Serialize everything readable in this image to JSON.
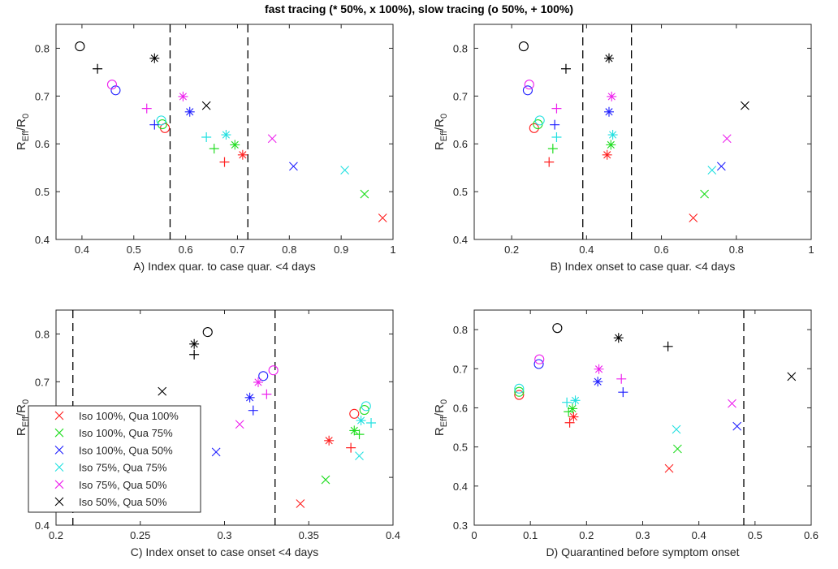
{
  "figure": {
    "title": "fast tracing (* 50%, x 100%), slow tracing (o 50%, + 100%)"
  },
  "colors": {
    "iso100_qua100": "#ff2020",
    "iso100_qua75": "#22dd22",
    "iso100_qua50": "#2020ff",
    "iso75_qua75": "#22e0e0",
    "iso75_qua50": "#ee22ee",
    "iso50_qua50": "#000000"
  },
  "chart_data": [
    {
      "type": "scatter",
      "xlabel": "A) Index quar. to case quar. <4 days",
      "ylabel": "R_Eff/R_0",
      "xlim": [
        0.35,
        1.0
      ],
      "ylim": [
        0.4,
        0.85
      ],
      "xticks": [
        0.4,
        0.5,
        0.6,
        0.7,
        0.8,
        0.9,
        1.0
      ],
      "xticklabels": [
        "0.4",
        "0.5",
        "0.6",
        "0.7",
        "0.8",
        "0.9",
        "1"
      ],
      "yticks": [
        0.4,
        0.5,
        0.6,
        0.7,
        0.8
      ],
      "yticklabels": [
        "0.4",
        "0.5",
        "0.6",
        "0.7",
        "0.8"
      ],
      "vlines": [
        0.57,
        0.72
      ],
      "series": [
        {
          "name": "Iso 100%, Qua 100%",
          "color": "iso100_qua100",
          "points": [
            {
              "marker": "o",
              "x": 0.56,
              "y": 0.633
            },
            {
              "marker": "+",
              "x": 0.675,
              "y": 0.562
            },
            {
              "marker": "*",
              "x": 0.71,
              "y": 0.577
            },
            {
              "marker": "x",
              "x": 0.98,
              "y": 0.445
            }
          ]
        },
        {
          "name": "Iso 100%, Qua 75%",
          "color": "iso100_qua75",
          "points": [
            {
              "marker": "o",
              "x": 0.555,
              "y": 0.641
            },
            {
              "marker": "+",
              "x": 0.655,
              "y": 0.59
            },
            {
              "marker": "*",
              "x": 0.695,
              "y": 0.598
            },
            {
              "marker": "x",
              "x": 0.945,
              "y": 0.495
            }
          ]
        },
        {
          "name": "Iso 100%, Qua 50%",
          "color": "iso100_qua50",
          "points": [
            {
              "marker": "o",
              "x": 0.465,
              "y": 0.712
            },
            {
              "marker": "+",
              "x": 0.54,
              "y": 0.64
            },
            {
              "marker": "*",
              "x": 0.608,
              "y": 0.667
            },
            {
              "marker": "x",
              "x": 0.808,
              "y": 0.553
            }
          ]
        },
        {
          "name": "Iso 75%, Qua 75%",
          "color": "iso75_qua75",
          "points": [
            {
              "marker": "o",
              "x": 0.553,
              "y": 0.649
            },
            {
              "marker": "+",
              "x": 0.64,
              "y": 0.614
            },
            {
              "marker": "*",
              "x": 0.678,
              "y": 0.619
            },
            {
              "marker": "x",
              "x": 0.907,
              "y": 0.545
            }
          ]
        },
        {
          "name": "Iso 75%, Qua 50%",
          "color": "iso75_qua50",
          "points": [
            {
              "marker": "o",
              "x": 0.458,
              "y": 0.724
            },
            {
              "marker": "+",
              "x": 0.525,
              "y": 0.674
            },
            {
              "marker": "*",
              "x": 0.595,
              "y": 0.699
            },
            {
              "marker": "x",
              "x": 0.767,
              "y": 0.611
            }
          ]
        },
        {
          "name": "Iso 50%, Qua 50%",
          "color": "iso50_qua50",
          "points": [
            {
              "marker": "o",
              "x": 0.396,
              "y": 0.804
            },
            {
              "marker": "+",
              "x": 0.43,
              "y": 0.757
            },
            {
              "marker": "*",
              "x": 0.54,
              "y": 0.779
            },
            {
              "marker": "x",
              "x": 0.64,
              "y": 0.68
            }
          ]
        }
      ]
    },
    {
      "type": "scatter",
      "xlabel": "B) Index onset to case quar. <4 days",
      "ylabel": "R_Eff/R_0",
      "xlim": [
        0.1,
        1.0
      ],
      "ylim": [
        0.4,
        0.85
      ],
      "xticks": [
        0.2,
        0.4,
        0.6,
        0.8,
        1.0
      ],
      "xticklabels": [
        "0.2",
        "0.4",
        "0.6",
        "0.8",
        "1"
      ],
      "yticks": [
        0.4,
        0.5,
        0.6,
        0.7,
        0.8
      ],
      "yticklabels": [
        "0.4",
        "0.5",
        "0.6",
        "0.7",
        "0.8"
      ],
      "vlines": [
        0.39,
        0.52
      ],
      "series": [
        {
          "name": "Iso 100%, Qua 100%",
          "color": "iso100_qua100",
          "points": [
            {
              "marker": "o",
              "x": 0.26,
              "y": 0.633
            },
            {
              "marker": "+",
              "x": 0.3,
              "y": 0.562
            },
            {
              "marker": "*",
              "x": 0.455,
              "y": 0.577
            },
            {
              "marker": "x",
              "x": 0.685,
              "y": 0.445
            }
          ]
        },
        {
          "name": "Iso 100%, Qua 75%",
          "color": "iso100_qua75",
          "points": [
            {
              "marker": "o",
              "x": 0.27,
              "y": 0.641
            },
            {
              "marker": "+",
              "x": 0.31,
              "y": 0.59
            },
            {
              "marker": "*",
              "x": 0.465,
              "y": 0.598
            },
            {
              "marker": "x",
              "x": 0.715,
              "y": 0.495
            }
          ]
        },
        {
          "name": "Iso 100%, Qua 50%",
          "color": "iso100_qua50",
          "points": [
            {
              "marker": "o",
              "x": 0.243,
              "y": 0.712
            },
            {
              "marker": "+",
              "x": 0.315,
              "y": 0.64
            },
            {
              "marker": "*",
              "x": 0.46,
              "y": 0.667
            },
            {
              "marker": "x",
              "x": 0.76,
              "y": 0.553
            }
          ]
        },
        {
          "name": "Iso 75%, Qua 75%",
          "color": "iso75_qua75",
          "points": [
            {
              "marker": "o",
              "x": 0.275,
              "y": 0.649
            },
            {
              "marker": "+",
              "x": 0.32,
              "y": 0.614
            },
            {
              "marker": "*",
              "x": 0.47,
              "y": 0.619
            },
            {
              "marker": "x",
              "x": 0.735,
              "y": 0.545
            }
          ]
        },
        {
          "name": "Iso 75%, Qua 50%",
          "color": "iso75_qua50",
          "points": [
            {
              "marker": "o",
              "x": 0.247,
              "y": 0.724
            },
            {
              "marker": "+",
              "x": 0.32,
              "y": 0.674
            },
            {
              "marker": "*",
              "x": 0.467,
              "y": 0.699
            },
            {
              "marker": "x",
              "x": 0.775,
              "y": 0.611
            }
          ]
        },
        {
          "name": "Iso 50%, Qua 50%",
          "color": "iso50_qua50",
          "points": [
            {
              "marker": "o",
              "x": 0.232,
              "y": 0.804
            },
            {
              "marker": "+",
              "x": 0.345,
              "y": 0.757
            },
            {
              "marker": "*",
              "x": 0.46,
              "y": 0.779
            },
            {
              "marker": "x",
              "x": 0.823,
              "y": 0.68
            }
          ]
        }
      ]
    },
    {
      "type": "scatter",
      "xlabel": "C) Index onset to case onset <4 days",
      "ylabel": "R_Eff/R_0",
      "xlim": [
        0.2,
        0.4
      ],
      "ylim": [
        0.4,
        0.85
      ],
      "xticks": [
        0.2,
        0.25,
        0.3,
        0.35,
        0.4
      ],
      "xticklabels": [
        "0.2",
        "0.25",
        "0.3",
        "0.35",
        "0.4"
      ],
      "yticks": [
        0.4,
        0.5,
        0.6,
        0.7,
        0.8
      ],
      "yticklabels": [
        "0.4",
        "",
        "",
        "0.7",
        "0.8"
      ],
      "vlines": [
        0.21,
        0.33
      ],
      "series": [
        {
          "name": "Iso 100%, Qua 100%",
          "color": "iso100_qua100",
          "points": [
            {
              "marker": "o",
              "x": 0.377,
              "y": 0.633
            },
            {
              "marker": "+",
              "x": 0.375,
              "y": 0.562
            },
            {
              "marker": "*",
              "x": 0.362,
              "y": 0.577
            },
            {
              "marker": "x",
              "x": 0.345,
              "y": 0.445
            }
          ]
        },
        {
          "name": "Iso 100%, Qua 75%",
          "color": "iso100_qua75",
          "points": [
            {
              "marker": "o",
              "x": 0.383,
              "y": 0.641
            },
            {
              "marker": "+",
              "x": 0.38,
              "y": 0.59
            },
            {
              "marker": "*",
              "x": 0.377,
              "y": 0.598
            },
            {
              "marker": "x",
              "x": 0.36,
              "y": 0.495
            }
          ]
        },
        {
          "name": "Iso 100%, Qua 50%",
          "color": "iso100_qua50",
          "points": [
            {
              "marker": "o",
              "x": 0.323,
              "y": 0.712
            },
            {
              "marker": "+",
              "x": 0.317,
              "y": 0.64
            },
            {
              "marker": "*",
              "x": 0.315,
              "y": 0.667
            },
            {
              "marker": "x",
              "x": 0.295,
              "y": 0.553
            }
          ]
        },
        {
          "name": "Iso 75%, Qua 75%",
          "color": "iso75_qua75",
          "points": [
            {
              "marker": "o",
              "x": 0.384,
              "y": 0.649
            },
            {
              "marker": "+",
              "x": 0.387,
              "y": 0.614
            },
            {
              "marker": "*",
              "x": 0.381,
              "y": 0.619
            },
            {
              "marker": "x",
              "x": 0.38,
              "y": 0.545
            }
          ]
        },
        {
          "name": "Iso 75%, Qua 50%",
          "color": "iso75_qua50",
          "points": [
            {
              "marker": "o",
              "x": 0.329,
              "y": 0.724
            },
            {
              "marker": "+",
              "x": 0.325,
              "y": 0.674
            },
            {
              "marker": "*",
              "x": 0.32,
              "y": 0.699
            },
            {
              "marker": "x",
              "x": 0.309,
              "y": 0.611
            }
          ]
        },
        {
          "name": "Iso 50%, Qua 50%",
          "color": "iso50_qua50",
          "points": [
            {
              "marker": "o",
              "x": 0.29,
              "y": 0.804
            },
            {
              "marker": "+",
              "x": 0.282,
              "y": 0.757
            },
            {
              "marker": "*",
              "x": 0.282,
              "y": 0.779
            },
            {
              "marker": "x",
              "x": 0.263,
              "y": 0.68
            }
          ]
        }
      ],
      "legend": {
        "placement": "bottom-left",
        "entries": [
          {
            "label": "Iso 100%, Qua 100%",
            "color": "iso100_qua100"
          },
          {
            "label": "Iso 100%, Qua 75%",
            "color": "iso100_qua75"
          },
          {
            "label": "Iso 100%, Qua 50%",
            "color": "iso100_qua50"
          },
          {
            "label": "Iso 75%, Qua 75%",
            "color": "iso75_qua75"
          },
          {
            "label": "Iso 75%, Qua 50%",
            "color": "iso75_qua50"
          },
          {
            "label": "Iso 50%, Qua 50%",
            "color": "iso50_qua50"
          }
        ]
      }
    },
    {
      "type": "scatter",
      "xlabel": "D) Quarantined before symptom onset",
      "ylabel": "R_Eff/R_0",
      "xlim": [
        0.0,
        0.6
      ],
      "ylim": [
        0.3,
        0.85
      ],
      "xticks": [
        0.0,
        0.1,
        0.2,
        0.3,
        0.4,
        0.5,
        0.6
      ],
      "xticklabels": [
        "0",
        "0.1",
        "0.2",
        "0.3",
        "0.4",
        "0.5",
        "0.6"
      ],
      "yticks": [
        0.3,
        0.4,
        0.5,
        0.6,
        0.7,
        0.8
      ],
      "yticklabels": [
        "0.3",
        "0.4",
        "0.5",
        "0.6",
        "0.7",
        "0.8"
      ],
      "vlines": [
        0.48
      ],
      "series": [
        {
          "name": "Iso 100%, Qua 100%",
          "color": "iso100_qua100",
          "points": [
            {
              "marker": "o",
              "x": 0.08,
              "y": 0.633
            },
            {
              "marker": "+",
              "x": 0.17,
              "y": 0.562
            },
            {
              "marker": "*",
              "x": 0.177,
              "y": 0.577
            },
            {
              "marker": "x",
              "x": 0.347,
              "y": 0.445
            }
          ]
        },
        {
          "name": "Iso 100%, Qua 75%",
          "color": "iso100_qua75",
          "points": [
            {
              "marker": "o",
              "x": 0.08,
              "y": 0.641
            },
            {
              "marker": "+",
              "x": 0.168,
              "y": 0.59
            },
            {
              "marker": "*",
              "x": 0.175,
              "y": 0.598
            },
            {
              "marker": "x",
              "x": 0.362,
              "y": 0.495
            }
          ]
        },
        {
          "name": "Iso 100%, Qua 50%",
          "color": "iso100_qua50",
          "points": [
            {
              "marker": "o",
              "x": 0.115,
              "y": 0.712
            },
            {
              "marker": "+",
              "x": 0.265,
              "y": 0.64
            },
            {
              "marker": "*",
              "x": 0.22,
              "y": 0.667
            },
            {
              "marker": "x",
              "x": 0.468,
              "y": 0.553
            }
          ]
        },
        {
          "name": "Iso 75%, Qua 75%",
          "color": "iso75_qua75",
          "points": [
            {
              "marker": "o",
              "x": 0.08,
              "y": 0.649
            },
            {
              "marker": "+",
              "x": 0.165,
              "y": 0.614
            },
            {
              "marker": "*",
              "x": 0.18,
              "y": 0.619
            },
            {
              "marker": "x",
              "x": 0.36,
              "y": 0.545
            }
          ]
        },
        {
          "name": "Iso 75%, Qua 50%",
          "color": "iso75_qua50",
          "points": [
            {
              "marker": "o",
              "x": 0.116,
              "y": 0.724
            },
            {
              "marker": "+",
              "x": 0.262,
              "y": 0.674
            },
            {
              "marker": "*",
              "x": 0.222,
              "y": 0.699
            },
            {
              "marker": "x",
              "x": 0.459,
              "y": 0.611
            }
          ]
        },
        {
          "name": "Iso 50%, Qua 50%",
          "color": "iso50_qua50",
          "points": [
            {
              "marker": "o",
              "x": 0.148,
              "y": 0.804
            },
            {
              "marker": "+",
              "x": 0.345,
              "y": 0.757
            },
            {
              "marker": "*",
              "x": 0.257,
              "y": 0.779
            },
            {
              "marker": "x",
              "x": 0.565,
              "y": 0.68
            }
          ]
        }
      ]
    }
  ]
}
